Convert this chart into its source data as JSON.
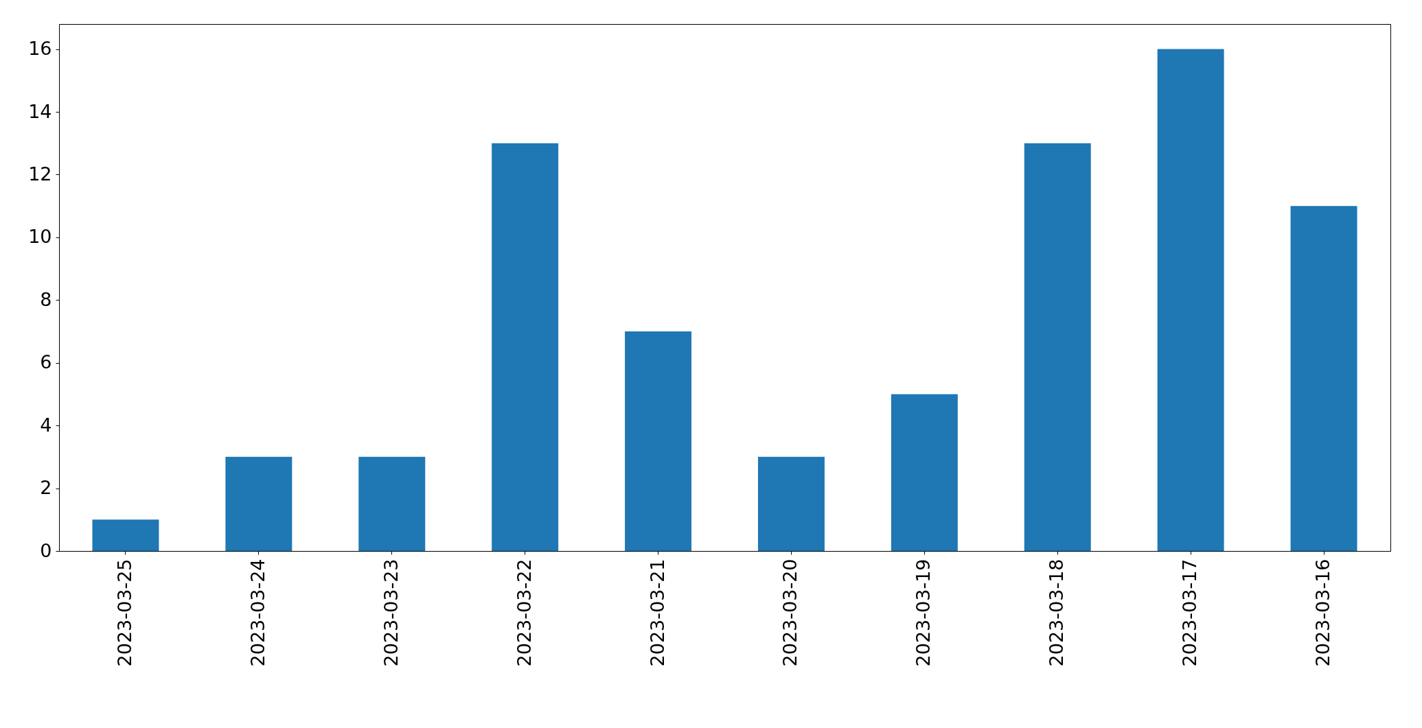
{
  "chart_data": {
    "type": "bar",
    "categories": [
      "2023-03-25",
      "2023-03-24",
      "2023-03-23",
      "2023-03-22",
      "2023-03-21",
      "2023-03-20",
      "2023-03-19",
      "2023-03-18",
      "2023-03-17",
      "2023-03-16"
    ],
    "values": [
      1,
      3,
      3,
      13,
      7,
      3,
      5,
      13,
      16,
      11
    ],
    "color": "#1f77b4",
    "ylim": [
      0,
      16.8
    ],
    "yticks": [
      0,
      2,
      4,
      6,
      8,
      10,
      12,
      14,
      16
    ],
    "grid": false
  }
}
